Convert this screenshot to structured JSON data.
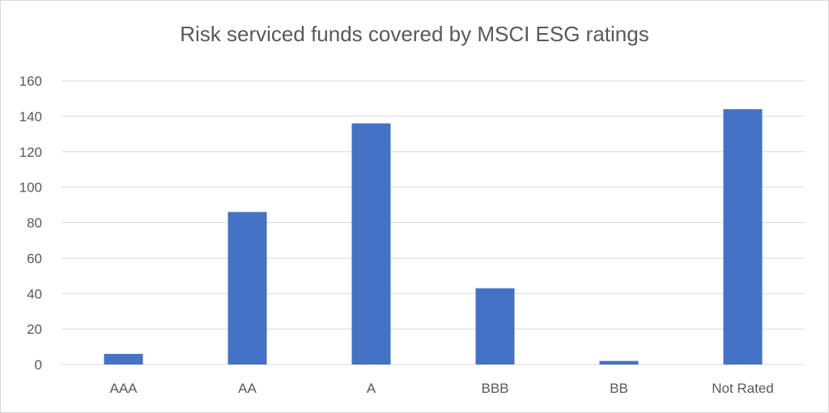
{
  "chart_data": {
    "type": "bar",
    "title": "Risk serviced funds covered by MSCI ESG ratings",
    "xlabel": "",
    "ylabel": "",
    "categories": [
      "AAA",
      "AA",
      "A",
      "BBB",
      "BB",
      "Not Rated"
    ],
    "values": [
      6,
      86,
      136,
      43,
      2,
      144
    ],
    "ylim": [
      0,
      160
    ],
    "yticks": [
      0,
      20,
      40,
      60,
      80,
      100,
      120,
      140,
      160
    ],
    "grid": true,
    "legend": "none",
    "colors": {
      "bar": "#4472C4",
      "grid": "#d9d9d9",
      "text": "#595959"
    }
  }
}
